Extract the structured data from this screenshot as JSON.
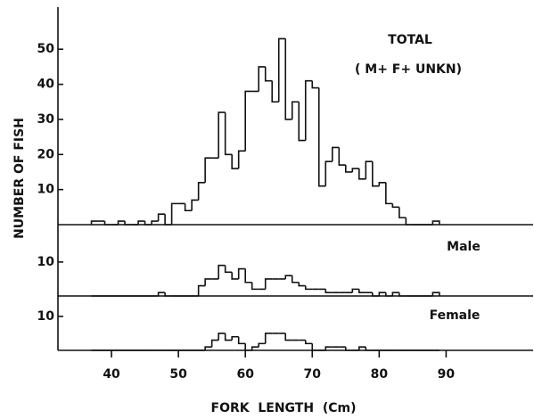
{
  "ylabel": "NUMBER OF FISH",
  "chart_data": [
    {
      "type": "histogram",
      "title": "TOTAL",
      "annotation": "( M+ F+ UNKN)",
      "color": "#111111",
      "bins": [
        37,
        38,
        39,
        40,
        41,
        42,
        43,
        44,
        45,
        46,
        47,
        48,
        49,
        50,
        51,
        52,
        53,
        54,
        55,
        56,
        57,
        58,
        59,
        60,
        61,
        62,
        63,
        64,
        65,
        66,
        67,
        68,
        69,
        70,
        71,
        72,
        73,
        74,
        75,
        76,
        77,
        78,
        79,
        80,
        81,
        82,
        83,
        84,
        85,
        86,
        87,
        88,
        89
      ],
      "counts": [
        1,
        1,
        0,
        0,
        1,
        0,
        0,
        1,
        0,
        1,
        3,
        0,
        6,
        6,
        4,
        7,
        12,
        19,
        19,
        32,
        20,
        16,
        21,
        38,
        38,
        45,
        41,
        35,
        53,
        30,
        35,
        24,
        41,
        39,
        11,
        18,
        22,
        17,
        15,
        16,
        13,
        18,
        11,
        12,
        6,
        5,
        2,
        0,
        0,
        0,
        0,
        1
      ],
      "xlim": [
        32,
        103
      ],
      "ylim": [
        0,
        62
      ],
      "yticks": [
        10,
        20,
        30,
        40,
        50
      ]
    },
    {
      "type": "histogram",
      "title": "Male",
      "color": "#111111",
      "bins": [
        37,
        38,
        39,
        40,
        41,
        42,
        43,
        44,
        45,
        46,
        47,
        48,
        49,
        50,
        51,
        52,
        53,
        54,
        55,
        56,
        57,
        58,
        59,
        60,
        61,
        62,
        63,
        64,
        65,
        66,
        67,
        68,
        69,
        70,
        71,
        72,
        73,
        74,
        75,
        76,
        77,
        78,
        79,
        80,
        81,
        82,
        83,
        84,
        85,
        86,
        87,
        88,
        89
      ],
      "counts": [
        0,
        0,
        0,
        0,
        0,
        0,
        0,
        0,
        0,
        0,
        1,
        0,
        0,
        0,
        0,
        0,
        3,
        5,
        5,
        9,
        7,
        5,
        8,
        4,
        2,
        2,
        5,
        5,
        5,
        6,
        4,
        3,
        2,
        2,
        2,
        1,
        1,
        1,
        1,
        2,
        1,
        1,
        0,
        1,
        0,
        1,
        0,
        0,
        0,
        0,
        0,
        1
      ],
      "xlim": [
        32,
        103
      ],
      "ylim": [
        0,
        21
      ],
      "yticks": [
        10
      ]
    },
    {
      "type": "histogram",
      "title": "Female",
      "color": "#111111",
      "bins": [
        37,
        38,
        39,
        40,
        41,
        42,
        43,
        44,
        45,
        46,
        47,
        48,
        49,
        50,
        51,
        52,
        53,
        54,
        55,
        56,
        57,
        58,
        59,
        60,
        61,
        62,
        63,
        64,
        65,
        66,
        67,
        68,
        69,
        70,
        71,
        72,
        73,
        74,
        75,
        76,
        77,
        78,
        79,
        80,
        81,
        82,
        83,
        84,
        85,
        86,
        87,
        88,
        89
      ],
      "counts": [
        0,
        0,
        0,
        0,
        0,
        0,
        0,
        0,
        0,
        0,
        0,
        0,
        0,
        0,
        0,
        0,
        0,
        1,
        3,
        5,
        3,
        4,
        2,
        0,
        1,
        2,
        5,
        5,
        5,
        3,
        3,
        3,
        2,
        0,
        0,
        1,
        1,
        1,
        0,
        0,
        1,
        0,
        0,
        0,
        0,
        0,
        0,
        0,
        0,
        0,
        0,
        0
      ],
      "xlim": [
        32,
        103
      ],
      "ylim": [
        0,
        16
      ],
      "yticks": [
        10
      ],
      "xlabel": "FORK  LENGTH  (Cm)",
      "xticks": [
        40,
        50,
        60,
        70,
        80,
        90
      ]
    }
  ]
}
